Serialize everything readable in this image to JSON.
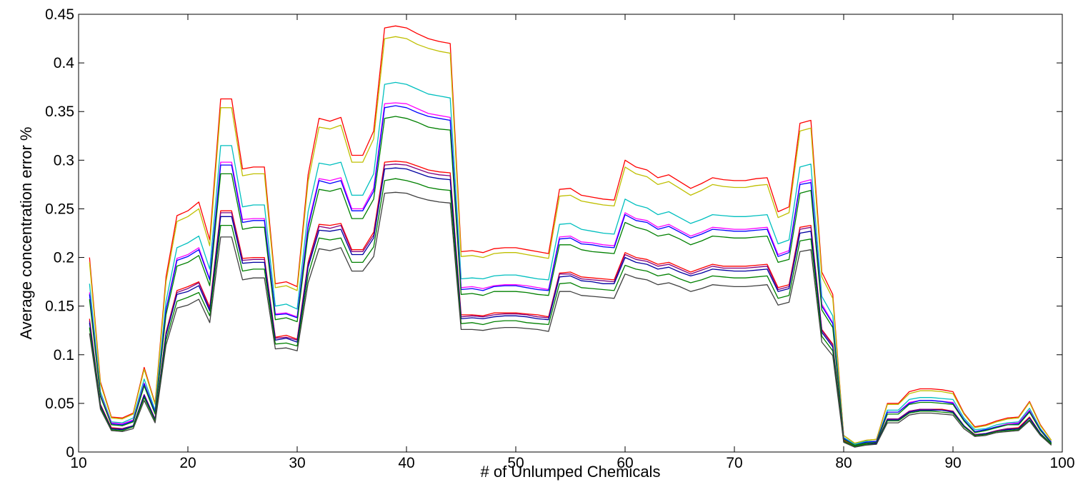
{
  "chart_data": {
    "type": "line",
    "title": "",
    "xlabel": "# of Unlumped Chemicals",
    "ylabel": "Average concentration error %",
    "xlim": [
      10,
      100
    ],
    "ylim": [
      0,
      0.45
    ],
    "xticks": [
      10,
      20,
      30,
      40,
      50,
      60,
      70,
      80,
      90,
      100
    ],
    "yticks": [
      0,
      0.05,
      0.1,
      0.15,
      0.2,
      0.25,
      0.3,
      0.35,
      0.4,
      0.45
    ],
    "xtick_labels": [
      "10",
      "20",
      "30",
      "40",
      "50",
      "60",
      "70",
      "80",
      "90",
      "100"
    ],
    "ytick_labels": [
      "0",
      "0.05",
      "0.1",
      "0.15",
      "0.2",
      "0.25",
      "0.3",
      "0.35",
      "0.4",
      "0.45"
    ],
    "grid": false,
    "legend": "none",
    "x": [
      11,
      12,
      13,
      14,
      15,
      16,
      17,
      18,
      19,
      20,
      21,
      22,
      23,
      24,
      25,
      26,
      27,
      28,
      29,
      30,
      31,
      32,
      33,
      34,
      35,
      36,
      37,
      38,
      39,
      40,
      41,
      42,
      43,
      44,
      45,
      46,
      47,
      48,
      49,
      50,
      51,
      52,
      53,
      54,
      55,
      56,
      57,
      58,
      59,
      60,
      61,
      62,
      63,
      64,
      65,
      66,
      67,
      68,
      69,
      70,
      71,
      72,
      73,
      74,
      75,
      76,
      77,
      78,
      79,
      80,
      81,
      82,
      83,
      84,
      85,
      86,
      87,
      88,
      89,
      90,
      91,
      92,
      93,
      94,
      95,
      96,
      97,
      98,
      99
    ],
    "series": [
      {
        "color": "#ff0000",
        "values": [
          0.2,
          0.072,
          0.036,
          0.035,
          0.04,
          0.087,
          0.05,
          0.18,
          0.243,
          0.248,
          0.257,
          0.218,
          0.363,
          0.363,
          0.291,
          0.293,
          0.293,
          0.173,
          0.175,
          0.17,
          0.285,
          0.343,
          0.34,
          0.344,
          0.305,
          0.305,
          0.33,
          0.436,
          0.438,
          0.436,
          0.43,
          0.425,
          0.422,
          0.42,
          0.206,
          0.207,
          0.205,
          0.209,
          0.21,
          0.21,
          0.208,
          0.206,
          0.204,
          0.27,
          0.271,
          0.264,
          0.262,
          0.26,
          0.259,
          0.3,
          0.293,
          0.29,
          0.282,
          0.285,
          0.278,
          0.271,
          0.276,
          0.282,
          0.28,
          0.279,
          0.279,
          0.281,
          0.282,
          0.247,
          0.252,
          0.338,
          0.341,
          0.185,
          0.162,
          0.017,
          0.009,
          0.012,
          0.013,
          0.05,
          0.05,
          0.062,
          0.065,
          0.065,
          0.064,
          0.062,
          0.04,
          0.026,
          0.028,
          0.032,
          0.035,
          0.036,
          0.052,
          0.028,
          0.012
        ]
      },
      {
        "color": "#bfbf00",
        "values": [
          0.195,
          0.07,
          0.035,
          0.034,
          0.039,
          0.085,
          0.049,
          0.175,
          0.237,
          0.242,
          0.25,
          0.212,
          0.354,
          0.354,
          0.284,
          0.286,
          0.286,
          0.169,
          0.171,
          0.166,
          0.278,
          0.334,
          0.332,
          0.336,
          0.298,
          0.298,
          0.322,
          0.425,
          0.427,
          0.425,
          0.419,
          0.415,
          0.412,
          0.41,
          0.201,
          0.202,
          0.2,
          0.204,
          0.205,
          0.205,
          0.203,
          0.201,
          0.199,
          0.263,
          0.264,
          0.258,
          0.256,
          0.254,
          0.253,
          0.293,
          0.286,
          0.283,
          0.275,
          0.278,
          0.271,
          0.264,
          0.269,
          0.275,
          0.273,
          0.272,
          0.272,
          0.274,
          0.275,
          0.241,
          0.246,
          0.33,
          0.333,
          0.18,
          0.158,
          0.017,
          0.009,
          0.012,
          0.013,
          0.049,
          0.049,
          0.06,
          0.063,
          0.063,
          0.062,
          0.06,
          0.039,
          0.025,
          0.027,
          0.031,
          0.034,
          0.035,
          0.051,
          0.027,
          0.012
        ]
      },
      {
        "color": "#00bfbf",
        "values": [
          0.173,
          0.062,
          0.031,
          0.03,
          0.035,
          0.075,
          0.043,
          0.155,
          0.21,
          0.215,
          0.222,
          0.188,
          0.315,
          0.315,
          0.252,
          0.254,
          0.254,
          0.15,
          0.152,
          0.147,
          0.247,
          0.297,
          0.295,
          0.298,
          0.264,
          0.264,
          0.286,
          0.378,
          0.38,
          0.378,
          0.373,
          0.368,
          0.366,
          0.364,
          0.178,
          0.179,
          0.178,
          0.181,
          0.182,
          0.182,
          0.18,
          0.178,
          0.177,
          0.234,
          0.235,
          0.229,
          0.227,
          0.225,
          0.224,
          0.26,
          0.254,
          0.251,
          0.244,
          0.247,
          0.241,
          0.235,
          0.239,
          0.244,
          0.243,
          0.242,
          0.242,
          0.243,
          0.244,
          0.214,
          0.218,
          0.293,
          0.296,
          0.16,
          0.14,
          0.015,
          0.008,
          0.011,
          0.011,
          0.043,
          0.043,
          0.054,
          0.056,
          0.056,
          0.055,
          0.054,
          0.035,
          0.023,
          0.024,
          0.028,
          0.03,
          0.031,
          0.045,
          0.024,
          0.01
        ]
      },
      {
        "color": "#ff00ff",
        "values": [
          0.164,
          0.059,
          0.03,
          0.029,
          0.033,
          0.071,
          0.041,
          0.147,
          0.199,
          0.203,
          0.21,
          0.178,
          0.298,
          0.298,
          0.239,
          0.24,
          0.24,
          0.142,
          0.143,
          0.139,
          0.234,
          0.281,
          0.279,
          0.282,
          0.25,
          0.25,
          0.271,
          0.358,
          0.359,
          0.358,
          0.353,
          0.348,
          0.346,
          0.344,
          0.169,
          0.17,
          0.168,
          0.171,
          0.172,
          0.172,
          0.171,
          0.169,
          0.167,
          0.221,
          0.222,
          0.216,
          0.215,
          0.213,
          0.212,
          0.246,
          0.24,
          0.238,
          0.231,
          0.234,
          0.228,
          0.222,
          0.226,
          0.231,
          0.23,
          0.229,
          0.229,
          0.23,
          0.231,
          0.203,
          0.207,
          0.277,
          0.28,
          0.152,
          0.133,
          0.014,
          0.007,
          0.01,
          0.011,
          0.041,
          0.041,
          0.051,
          0.053,
          0.053,
          0.052,
          0.051,
          0.033,
          0.021,
          0.023,
          0.026,
          0.029,
          0.03,
          0.043,
          0.023,
          0.01
        ]
      },
      {
        "color": "#0000ff",
        "values": [
          0.162,
          0.058,
          0.029,
          0.028,
          0.032,
          0.07,
          0.041,
          0.146,
          0.197,
          0.201,
          0.208,
          0.177,
          0.295,
          0.295,
          0.236,
          0.238,
          0.238,
          0.141,
          0.142,
          0.138,
          0.231,
          0.279,
          0.276,
          0.279,
          0.248,
          0.248,
          0.268,
          0.354,
          0.356,
          0.354,
          0.349,
          0.345,
          0.343,
          0.341,
          0.167,
          0.168,
          0.166,
          0.17,
          0.171,
          0.171,
          0.169,
          0.167,
          0.166,
          0.219,
          0.22,
          0.214,
          0.213,
          0.211,
          0.21,
          0.244,
          0.238,
          0.236,
          0.229,
          0.232,
          0.226,
          0.22,
          0.224,
          0.229,
          0.228,
          0.227,
          0.227,
          0.228,
          0.229,
          0.201,
          0.205,
          0.275,
          0.277,
          0.15,
          0.132,
          0.014,
          0.007,
          0.01,
          0.011,
          0.041,
          0.041,
          0.05,
          0.053,
          0.053,
          0.052,
          0.05,
          0.033,
          0.021,
          0.023,
          0.026,
          0.028,
          0.029,
          0.042,
          0.023,
          0.01
        ]
      },
      {
        "color": "#008000",
        "values": [
          0.157,
          0.057,
          0.028,
          0.027,
          0.031,
          0.068,
          0.039,
          0.141,
          0.191,
          0.195,
          0.202,
          0.171,
          0.286,
          0.286,
          0.229,
          0.231,
          0.231,
          0.136,
          0.138,
          0.134,
          0.224,
          0.27,
          0.268,
          0.271,
          0.24,
          0.24,
          0.26,
          0.343,
          0.345,
          0.343,
          0.339,
          0.334,
          0.332,
          0.331,
          0.162,
          0.163,
          0.161,
          0.165,
          0.165,
          0.165,
          0.164,
          0.162,
          0.161,
          0.213,
          0.213,
          0.208,
          0.206,
          0.205,
          0.204,
          0.236,
          0.231,
          0.228,
          0.222,
          0.224,
          0.219,
          0.213,
          0.217,
          0.222,
          0.221,
          0.22,
          0.22,
          0.221,
          0.222,
          0.195,
          0.198,
          0.266,
          0.269,
          0.146,
          0.128,
          0.013,
          0.007,
          0.009,
          0.01,
          0.039,
          0.039,
          0.049,
          0.051,
          0.051,
          0.05,
          0.049,
          0.032,
          0.02,
          0.022,
          0.025,
          0.028,
          0.028,
          0.041,
          0.022,
          0.009
        ]
      },
      {
        "color": "#ff0000",
        "values": [
          0.137,
          0.049,
          0.025,
          0.024,
          0.027,
          0.059,
          0.034,
          0.123,
          0.166,
          0.17,
          0.175,
          0.149,
          0.248,
          0.248,
          0.199,
          0.2,
          0.2,
          0.118,
          0.12,
          0.116,
          0.195,
          0.234,
          0.233,
          0.235,
          0.208,
          0.208,
          0.226,
          0.298,
          0.299,
          0.298,
          0.294,
          0.29,
          0.288,
          0.287,
          0.141,
          0.141,
          0.14,
          0.143,
          0.143,
          0.143,
          0.142,
          0.141,
          0.139,
          0.184,
          0.185,
          0.18,
          0.179,
          0.178,
          0.177,
          0.205,
          0.2,
          0.198,
          0.193,
          0.195,
          0.19,
          0.185,
          0.189,
          0.193,
          0.191,
          0.191,
          0.191,
          0.192,
          0.193,
          0.169,
          0.172,
          0.231,
          0.233,
          0.126,
          0.111,
          0.012,
          0.006,
          0.008,
          0.009,
          0.034,
          0.034,
          0.042,
          0.044,
          0.044,
          0.044,
          0.042,
          0.027,
          0.018,
          0.019,
          0.022,
          0.024,
          0.025,
          0.036,
          0.019,
          0.008
        ]
      },
      {
        "color": "#800080",
        "values": [
          0.135,
          0.048,
          0.024,
          0.024,
          0.027,
          0.059,
          0.034,
          0.122,
          0.164,
          0.168,
          0.174,
          0.147,
          0.246,
          0.246,
          0.197,
          0.198,
          0.198,
          0.117,
          0.118,
          0.115,
          0.193,
          0.232,
          0.23,
          0.233,
          0.206,
          0.206,
          0.223,
          0.295,
          0.296,
          0.295,
          0.291,
          0.287,
          0.285,
          0.284,
          0.139,
          0.14,
          0.139,
          0.141,
          0.142,
          0.142,
          0.141,
          0.139,
          0.138,
          0.183,
          0.183,
          0.178,
          0.177,
          0.176,
          0.175,
          0.203,
          0.198,
          0.196,
          0.191,
          0.193,
          0.188,
          0.183,
          0.187,
          0.191,
          0.189,
          0.189,
          0.189,
          0.19,
          0.191,
          0.167,
          0.17,
          0.229,
          0.231,
          0.125,
          0.11,
          0.011,
          0.006,
          0.008,
          0.009,
          0.034,
          0.034,
          0.042,
          0.044,
          0.044,
          0.043,
          0.042,
          0.027,
          0.018,
          0.019,
          0.022,
          0.024,
          0.024,
          0.035,
          0.019,
          0.008
        ]
      },
      {
        "color": "#0000a0",
        "values": [
          0.133,
          0.048,
          0.024,
          0.023,
          0.027,
          0.058,
          0.033,
          0.12,
          0.162,
          0.165,
          0.171,
          0.145,
          0.242,
          0.242,
          0.194,
          0.195,
          0.195,
          0.115,
          0.117,
          0.113,
          0.19,
          0.228,
          0.227,
          0.229,
          0.203,
          0.203,
          0.22,
          0.291,
          0.292,
          0.291,
          0.287,
          0.283,
          0.281,
          0.28,
          0.137,
          0.138,
          0.137,
          0.139,
          0.14,
          0.14,
          0.139,
          0.137,
          0.136,
          0.18,
          0.181,
          0.176,
          0.175,
          0.173,
          0.173,
          0.2,
          0.195,
          0.193,
          0.188,
          0.19,
          0.185,
          0.181,
          0.184,
          0.188,
          0.187,
          0.186,
          0.186,
          0.187,
          0.188,
          0.165,
          0.168,
          0.225,
          0.227,
          0.123,
          0.108,
          0.011,
          0.006,
          0.008,
          0.009,
          0.033,
          0.033,
          0.041,
          0.043,
          0.043,
          0.043,
          0.041,
          0.027,
          0.017,
          0.019,
          0.021,
          0.023,
          0.024,
          0.035,
          0.019,
          0.008
        ]
      },
      {
        "color": "#008000",
        "values": [
          0.128,
          0.046,
          0.023,
          0.022,
          0.026,
          0.056,
          0.032,
          0.115,
          0.155,
          0.159,
          0.164,
          0.14,
          0.233,
          0.233,
          0.186,
          0.188,
          0.188,
          0.111,
          0.112,
          0.109,
          0.182,
          0.22,
          0.218,
          0.22,
          0.195,
          0.195,
          0.211,
          0.279,
          0.281,
          0.279,
          0.276,
          0.272,
          0.27,
          0.269,
          0.132,
          0.133,
          0.131,
          0.134,
          0.135,
          0.135,
          0.133,
          0.132,
          0.131,
          0.173,
          0.174,
          0.169,
          0.168,
          0.167,
          0.166,
          0.192,
          0.188,
          0.186,
          0.181,
          0.183,
          0.178,
          0.174,
          0.177,
          0.181,
          0.18,
          0.179,
          0.179,
          0.18,
          0.181,
          0.158,
          0.161,
          0.217,
          0.219,
          0.119,
          0.104,
          0.011,
          0.006,
          0.008,
          0.008,
          0.032,
          0.032,
          0.04,
          0.042,
          0.042,
          0.041,
          0.04,
          0.026,
          0.017,
          0.018,
          0.021,
          0.022,
          0.023,
          0.033,
          0.018,
          0.008
        ]
      },
      {
        "color": "#404040",
        "values": [
          0.122,
          0.044,
          0.022,
          0.021,
          0.024,
          0.053,
          0.03,
          0.11,
          0.148,
          0.151,
          0.157,
          0.133,
          0.221,
          0.221,
          0.177,
          0.179,
          0.179,
          0.106,
          0.107,
          0.104,
          0.174,
          0.209,
          0.207,
          0.21,
          0.186,
          0.186,
          0.201,
          0.266,
          0.267,
          0.266,
          0.262,
          0.259,
          0.257,
          0.256,
          0.126,
          0.126,
          0.125,
          0.127,
          0.128,
          0.128,
          0.127,
          0.126,
          0.124,
          0.165,
          0.165,
          0.161,
          0.16,
          0.159,
          0.158,
          0.183,
          0.179,
          0.177,
          0.172,
          0.174,
          0.17,
          0.165,
          0.168,
          0.172,
          0.171,
          0.17,
          0.17,
          0.171,
          0.172,
          0.151,
          0.154,
          0.206,
          0.208,
          0.113,
          0.099,
          0.01,
          0.005,
          0.007,
          0.008,
          0.03,
          0.03,
          0.038,
          0.04,
          0.04,
          0.039,
          0.038,
          0.024,
          0.016,
          0.017,
          0.02,
          0.021,
          0.022,
          0.032,
          0.017,
          0.007
        ]
      }
    ]
  }
}
